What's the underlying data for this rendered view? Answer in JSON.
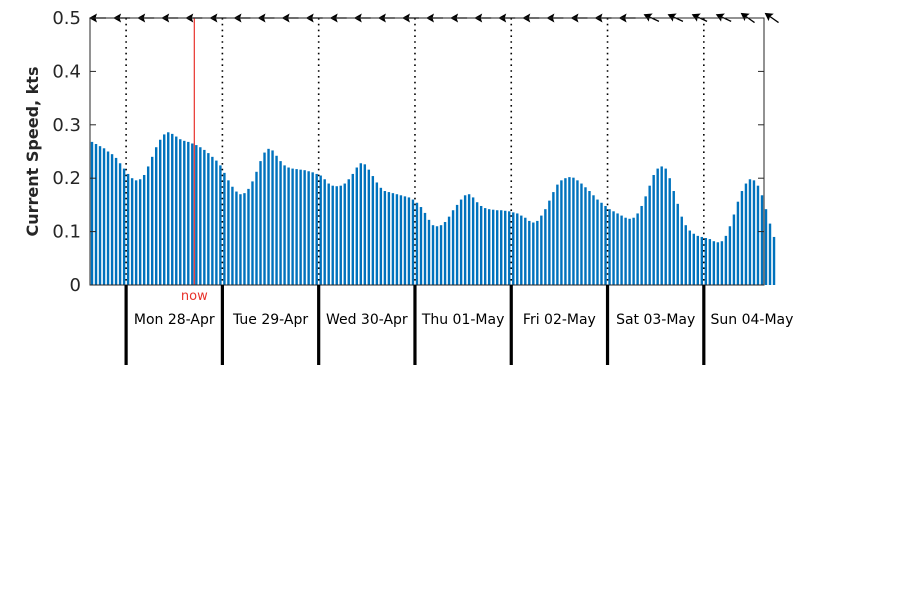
{
  "chart_data": {
    "type": "bar",
    "title": "",
    "xlabel": "",
    "ylabel": "Current Speed, kts",
    "ylim": [
      0,
      0.5
    ],
    "yticks": [
      "0",
      "0.1",
      "0.2",
      "0.3",
      "0.4",
      "0.5"
    ],
    "bar_color": "#0072bd",
    "day_labels": [
      "Mon 28-Apr",
      "Tue 29-Apr",
      "Wed 30-Apr",
      "Thu 01-May",
      "Fri 02-May",
      "Sat 03-May",
      "Sun 04-May"
    ],
    "hours_before_first_day": 9,
    "total_hours": 168,
    "now_label": "now",
    "now_hour": 26,
    "now_color": "#e8322b",
    "values": [
      0.268,
      0.264,
      0.26,
      0.256,
      0.25,
      0.245,
      0.238,
      0.228,
      0.218,
      0.208,
      0.2,
      0.196,
      0.198,
      0.206,
      0.222,
      0.24,
      0.258,
      0.272,
      0.282,
      0.286,
      0.283,
      0.278,
      0.273,
      0.27,
      0.268,
      0.265,
      0.262,
      0.258,
      0.253,
      0.247,
      0.24,
      0.233,
      0.224,
      0.21,
      0.196,
      0.184,
      0.175,
      0.17,
      0.172,
      0.18,
      0.194,
      0.212,
      0.232,
      0.248,
      0.255,
      0.252,
      0.242,
      0.232,
      0.224,
      0.22,
      0.218,
      0.217,
      0.216,
      0.215,
      0.213,
      0.211,
      0.208,
      0.205,
      0.198,
      0.19,
      0.186,
      0.185,
      0.186,
      0.19,
      0.198,
      0.208,
      0.22,
      0.228,
      0.226,
      0.216,
      0.204,
      0.192,
      0.182,
      0.176,
      0.174,
      0.172,
      0.17,
      0.168,
      0.166,
      0.164,
      0.16,
      0.154,
      0.146,
      0.135,
      0.122,
      0.112,
      0.11,
      0.112,
      0.118,
      0.128,
      0.14,
      0.15,
      0.16,
      0.168,
      0.17,
      0.164,
      0.155,
      0.148,
      0.144,
      0.142,
      0.141,
      0.14,
      0.14,
      0.139,
      0.138,
      0.136,
      0.134,
      0.13,
      0.126,
      0.12,
      0.117,
      0.12,
      0.13,
      0.142,
      0.158,
      0.174,
      0.188,
      0.196,
      0.2,
      0.202,
      0.201,
      0.196,
      0.19,
      0.183,
      0.176,
      0.168,
      0.16,
      0.154,
      0.148,
      0.142,
      0.138,
      0.134,
      0.13,
      0.126,
      0.124,
      0.126,
      0.134,
      0.148,
      0.166,
      0.186,
      0.206,
      0.218,
      0.222,
      0.218,
      0.2,
      0.176,
      0.152,
      0.128,
      0.112,
      0.102,
      0.096,
      0.092,
      0.09,
      0.088,
      0.086,
      0.082,
      0.08,
      0.082,
      0.092,
      0.11,
      0.132,
      0.156,
      0.176,
      0.19,
      0.198,
      0.196,
      0.186,
      0.168,
      0.142,
      0.115,
      0.09
    ]
  }
}
